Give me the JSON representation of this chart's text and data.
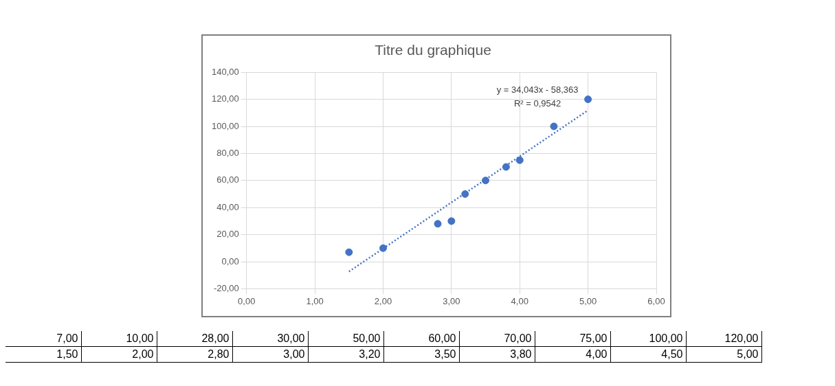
{
  "chart_data": {
    "type": "scatter",
    "title": "Titre du graphique",
    "marker": "circle",
    "grid": true,
    "legend": false,
    "xlim": [
      0,
      6
    ],
    "xticks": [
      {
        "value": 0,
        "label": "0,00"
      },
      {
        "value": 1,
        "label": "1,00"
      },
      {
        "value": 2,
        "label": "2,00"
      },
      {
        "value": 3,
        "label": "3,00"
      },
      {
        "value": 4,
        "label": "4,00"
      },
      {
        "value": 5,
        "label": "5,00"
      },
      {
        "value": 6,
        "label": "6,00"
      }
    ],
    "ylim": [
      -20,
      140
    ],
    "yticks": [
      {
        "value": -20,
        "label": "-20,00"
      },
      {
        "value": 0,
        "label": "0,00"
      },
      {
        "value": 20,
        "label": "20,00"
      },
      {
        "value": 40,
        "label": "40,00"
      },
      {
        "value": 60,
        "label": "60,00"
      },
      {
        "value": 80,
        "label": "80,00"
      },
      {
        "value": 100,
        "label": "100,00"
      },
      {
        "value": 120,
        "label": "120,00"
      },
      {
        "value": 140,
        "label": "140,00"
      }
    ],
    "series": [
      {
        "type": "scatter",
        "color": "#4472c4",
        "x": [
          1.5,
          2,
          2.8,
          3,
          3.2,
          3.5,
          3.8,
          4,
          4.5,
          5
        ],
        "values": [
          7,
          10,
          28,
          30,
          50,
          60,
          70,
          75,
          100,
          120
        ]
      },
      {
        "type": "line",
        "color": "#4472c4",
        "line_style": "dotted",
        "marker": "none",
        "x": [
          1.5,
          5
        ],
        "values": [
          -7.3,
          111.9
        ]
      }
    ],
    "annotations": [
      "y = 34,043x - 58,363",
      "R² = 0,9542",
      "7,00",
      "10,00",
      "28,00",
      "30,00",
      "50,00",
      "60,00",
      "70,00",
      "75,00",
      "100,00",
      "120,00",
      "1,50",
      "2,00",
      "2,80",
      "3,00",
      "3,20",
      "3,50",
      "3,80",
      "4,00",
      "4,50",
      "5,00"
    ]
  }
}
